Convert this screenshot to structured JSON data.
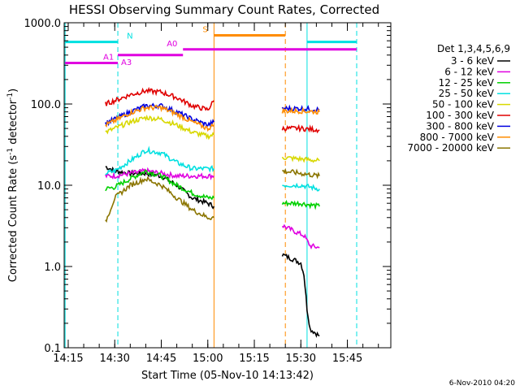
{
  "chart_data": {
    "type": "line",
    "title": "HESSI Observing Summary Count Rates, Corrected",
    "xlabel": "Start Time (05-Nov-10 14:13:42)",
    "ylabel": "Corrected Count Rate (s",
    "ylabel_sup1": "-1",
    "ylabel_mid": " detector",
    "ylabel_sup2": "-1",
    "ylabel_end": ")",
    "y_scale": "log",
    "ylim": [
      0.1,
      1000
    ],
    "xlim": [
      "14:13:42",
      "15:59:00"
    ],
    "x_ticks": [
      "14:15",
      "14:30",
      "14:45",
      "15:00",
      "15:15",
      "15:30",
      "15:45"
    ],
    "y_ticks": [
      "0.1",
      "1.0",
      "10.0",
      "100.0",
      "1000.0"
    ],
    "footer": "6-Nov-2010 04:20",
    "legend": {
      "header": "Det 1,3,4,5,6,9",
      "placement": "right",
      "entries": [
        {
          "label": "3 - 6 keV",
          "color": "#000000"
        },
        {
          "label": "6 - 12 keV",
          "color": "#e000e0"
        },
        {
          "label": "12 - 25 keV",
          "color": "#00d000"
        },
        {
          "label": "25 - 50 keV",
          "color": "#00e0e0"
        },
        {
          "label": "50 - 100 keV",
          "color": "#d8d800"
        },
        {
          "label": "100 - 300 keV",
          "color": "#e00000"
        },
        {
          "label": "300 - 800 keV",
          "color": "#0000e0"
        },
        {
          "label": "800 - 7000 keV",
          "color": "#ff8c00"
        },
        {
          "label": "7000 - 20000 keV",
          "color": "#8b7500"
        }
      ]
    },
    "flags": [
      {
        "label": "N",
        "color": "#00e0e0",
        "segments": [
          [
            "14:14",
            "14:31"
          ],
          [
            "15:32",
            "15:48"
          ]
        ],
        "level": 580
      },
      {
        "label": "A1",
        "color": "#e000e0",
        "segments": [
          [
            "14:14",
            "14:31"
          ]
        ],
        "level": 320
      },
      {
        "label": "A3",
        "color": "#e000e0",
        "segments": [
          [
            "14:31",
            "14:52"
          ]
        ],
        "level": 400
      },
      {
        "label": "A0",
        "color": "#e000e0",
        "segments": [
          [
            "14:52",
            "15:48"
          ]
        ],
        "level": 470
      },
      {
        "label": "S",
        "color": "#ff8c00",
        "segments": [
          [
            "15:02",
            "15:25"
          ]
        ],
        "level": 700
      }
    ],
    "vlines": [
      {
        "x": "14:14",
        "color": "#00e0e0",
        "style": "solid"
      },
      {
        "x": "14:31",
        "color": "#00e0e0",
        "style": "dashed"
      },
      {
        "x": "15:02",
        "color": "#ff8c00",
        "style": "solid"
      },
      {
        "x": "15:25",
        "color": "#ff8c00",
        "style": "dashed"
      },
      {
        "x": "15:32",
        "color": "#00e0e0",
        "style": "solid"
      },
      {
        "x": "15:48",
        "color": "#00e0e0",
        "style": "dashed"
      }
    ],
    "series": [
      {
        "name": "3 - 6 keV",
        "color": "#000000",
        "segments": [
          {
            "x": [
              "14:27",
              "14:30",
              "14:35",
              "14:40",
              "14:45",
              "14:50",
              "14:55",
              "15:00",
              "15:02"
            ],
            "y": [
              17,
              15,
              14,
              14,
              13,
              10,
              7,
              6,
              5.5
            ]
          },
          {
            "x": [
              "15:24",
              "15:28",
              "15:30",
              "15:31",
              "15:32",
              "15:33",
              "15:36"
            ],
            "y": [
              1.4,
              1.2,
              1.1,
              0.8,
              0.3,
              0.17,
              0.14
            ]
          }
        ]
      },
      {
        "name": "6 - 12 keV",
        "color": "#e000e0",
        "segments": [
          {
            "x": [
              "14:27",
              "14:30",
              "14:35",
              "14:40",
              "14:45",
              "14:50",
              "14:55",
              "15:00",
              "15:02"
            ],
            "y": [
              13,
              13,
              14,
              15,
              14,
              13,
              13,
              13,
              13
            ]
          },
          {
            "x": [
              "15:24",
              "15:28",
              "15:31",
              "15:33",
              "15:36"
            ],
            "y": [
              3.2,
              2.7,
              2.4,
              1.8,
              1.7
            ]
          }
        ]
      },
      {
        "name": "12 - 25 keV",
        "color": "#00d000",
        "segments": [
          {
            "x": [
              "14:27",
              "14:30",
              "14:35",
              "14:40",
              "14:45",
              "14:50",
              "14:55",
              "15:00",
              "15:02"
            ],
            "y": [
              9,
              9.5,
              12,
              15,
              13,
              10,
              8,
              7,
              7
            ]
          },
          {
            "x": [
              "15:24",
              "15:30",
              "15:36"
            ],
            "y": [
              6,
              6,
              5.5
            ]
          }
        ]
      },
      {
        "name": "25 - 50 keV",
        "color": "#00e0e0",
        "segments": [
          {
            "x": [
              "14:27",
              "14:30",
              "14:35",
              "14:40",
              "14:45",
              "14:50",
              "14:55",
              "15:00",
              "15:02"
            ],
            "y": [
              14,
              15,
              20,
              27,
              25,
              19,
              16,
              16,
              16
            ]
          },
          {
            "x": [
              "15:24",
              "15:30",
              "15:36"
            ],
            "y": [
              10,
              10,
              9
            ]
          }
        ]
      },
      {
        "name": "50 - 100 keV",
        "color": "#d8d800",
        "segments": [
          {
            "x": [
              "14:27",
              "14:30",
              "14:35",
              "14:40",
              "14:45",
              "14:50",
              "14:55",
              "15:00",
              "15:02"
            ],
            "y": [
              45,
              50,
              60,
              68,
              65,
              55,
              45,
              40,
              42
            ]
          },
          {
            "x": [
              "15:24",
              "15:30",
              "15:36"
            ],
            "y": [
              22,
              21,
              20
            ]
          }
        ]
      },
      {
        "name": "100 - 300 keV",
        "color": "#e00000",
        "segments": [
          {
            "x": [
              "14:27",
              "14:30",
              "14:35",
              "14:40",
              "14:45",
              "14:50",
              "14:55",
              "15:00",
              "15:02"
            ],
            "y": [
              100,
              110,
              130,
              145,
              140,
              120,
              95,
              85,
              110
            ]
          },
          {
            "x": [
              "15:24",
              "15:30",
              "15:36"
            ],
            "y": [
              50,
              50,
              48
            ]
          }
        ]
      },
      {
        "name": "300 - 800 keV",
        "color": "#0000e0",
        "segments": [
          {
            "x": [
              "14:27",
              "14:30",
              "14:35",
              "14:40",
              "14:45",
              "14:50",
              "14:55",
              "15:00",
              "15:02"
            ],
            "y": [
              58,
              65,
              80,
              95,
              95,
              80,
              65,
              55,
              60
            ]
          },
          {
            "x": [
              "15:24",
              "15:30",
              "15:36"
            ],
            "y": [
              88,
              88,
              85
            ]
          }
        ]
      },
      {
        "name": "800 - 7000 keV",
        "color": "#ff8c00",
        "segments": [
          {
            "x": [
              "14:27",
              "14:30",
              "14:35",
              "14:40",
              "14:45",
              "14:50",
              "14:55",
              "15:00",
              "15:02"
            ],
            "y": [
              55,
              62,
              78,
              90,
              90,
              75,
              60,
              50,
              55
            ]
          },
          {
            "x": [
              "15:24",
              "15:30",
              "15:36"
            ],
            "y": [
              82,
              82,
              80
            ]
          }
        ]
      },
      {
        "name": "7000 - 20000 keV",
        "color": "#8b7500",
        "segments": [
          {
            "x": [
              "14:27",
              "14:30",
              "14:35",
              "14:40",
              "14:45",
              "14:50",
              "14:55",
              "15:00",
              "15:02"
            ],
            "y": [
              3.5,
              7,
              10,
              12,
              10,
              7,
              5,
              4,
              4
            ]
          },
          {
            "x": [
              "15:24",
              "15:30",
              "15:36"
            ],
            "y": [
              15,
              14,
              13
            ]
          }
        ]
      }
    ]
  }
}
